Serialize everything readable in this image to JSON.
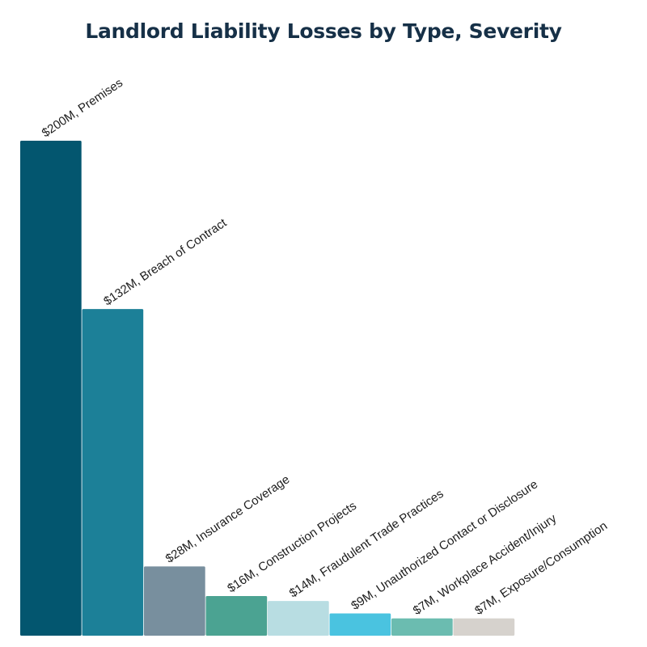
{
  "chart_data": {
    "type": "bar",
    "title": "Landlord Liability Losses by Type, Severity",
    "xlabel": "",
    "ylabel": "",
    "ylim": [
      0,
      200
    ],
    "grid": false,
    "legend": "none",
    "categories": [
      "Premises",
      "Breach of Contract",
      "Insurance Coverage",
      "Construction Projects",
      "Fraudulent Trade Practices",
      "Unauthorized Contact or Disclosure",
      "Workplace Accident/Injury",
      "Exposure/Consumption"
    ],
    "values": [
      200,
      132,
      28,
      16,
      14,
      9,
      7,
      7
    ],
    "data_labels": [
      "$200M, Premises",
      "$132M, Breach of Contract",
      "$28M, Insurance Coverage",
      "$16M, Construction Projects",
      "$14M, Fraudulent Trade Practices",
      "$9M, Unauthorized Contact or Disclosure",
      "$7M, Workplace Accident/Injury",
      "$7M, Exposure/Consumption"
    ],
    "colors": [
      "#03566f",
      "#1c8098",
      "#788f9e",
      "#4ba392",
      "#b8dde2",
      "#4ac3e0",
      "#6bbcb0",
      "#d6d2cd"
    ]
  }
}
